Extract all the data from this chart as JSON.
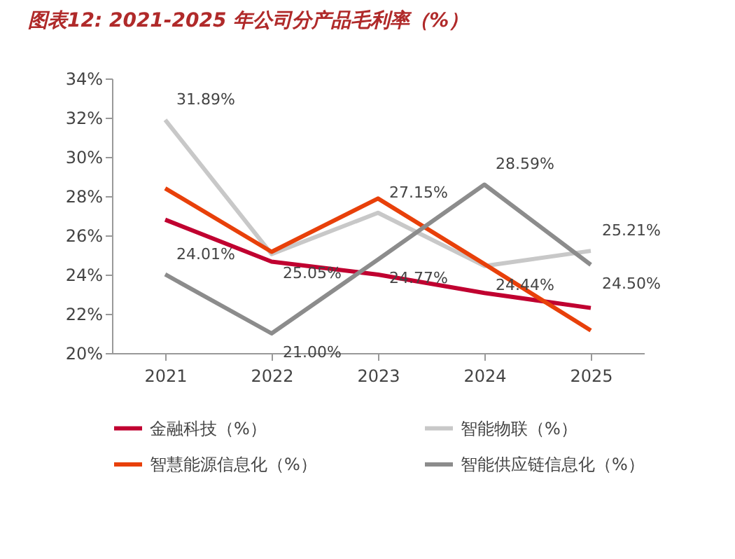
{
  "chart_data": {
    "type": "line",
    "title": "图表12:  2021-2025 年公司分产品毛利率（%）",
    "categories": [
      "2021",
      "2022",
      "2023",
      "2024",
      "2025"
    ],
    "series": [
      {
        "name": "金融科技（%）",
        "color": "#c00030",
        "values": [
          26.8,
          24.66,
          24.0,
          23.06,
          22.3
        ]
      },
      {
        "name": "智能物联（%）",
        "color": "#c8c8c8",
        "values": [
          31.89,
          25.05,
          27.15,
          24.44,
          25.21
        ],
        "value_labels": [
          "31.89%",
          "25.05%",
          "27.15%",
          "24.44%",
          "25.21%"
        ]
      },
      {
        "name": "智慧能源信息化（%）",
        "color": "#e8400a",
        "values": [
          28.4,
          25.16,
          27.88,
          24.54,
          21.15
        ]
      },
      {
        "name": "智能供应链信息化（%）",
        "color": "#8c8c8c",
        "values": [
          24.01,
          21.0,
          24.77,
          28.59,
          24.5
        ],
        "value_labels": [
          "24.01%",
          "21.00%",
          "24.77%",
          "28.59%",
          "24.50%"
        ]
      }
    ],
    "ylim": [
      20,
      34
    ],
    "yticks": [
      {
        "value": 20,
        "label": "20%"
      },
      {
        "value": 22,
        "label": "22%"
      },
      {
        "value": 24,
        "label": "24%"
      },
      {
        "value": 26,
        "label": "26%"
      },
      {
        "value": 28,
        "label": "28%"
      },
      {
        "value": 30,
        "label": "30%"
      },
      {
        "value": 32,
        "label": "32%"
      },
      {
        "value": 34,
        "label": "34%"
      }
    ],
    "grid": false,
    "legend": "bottom",
    "marker": "none",
    "line_style": "solid"
  }
}
